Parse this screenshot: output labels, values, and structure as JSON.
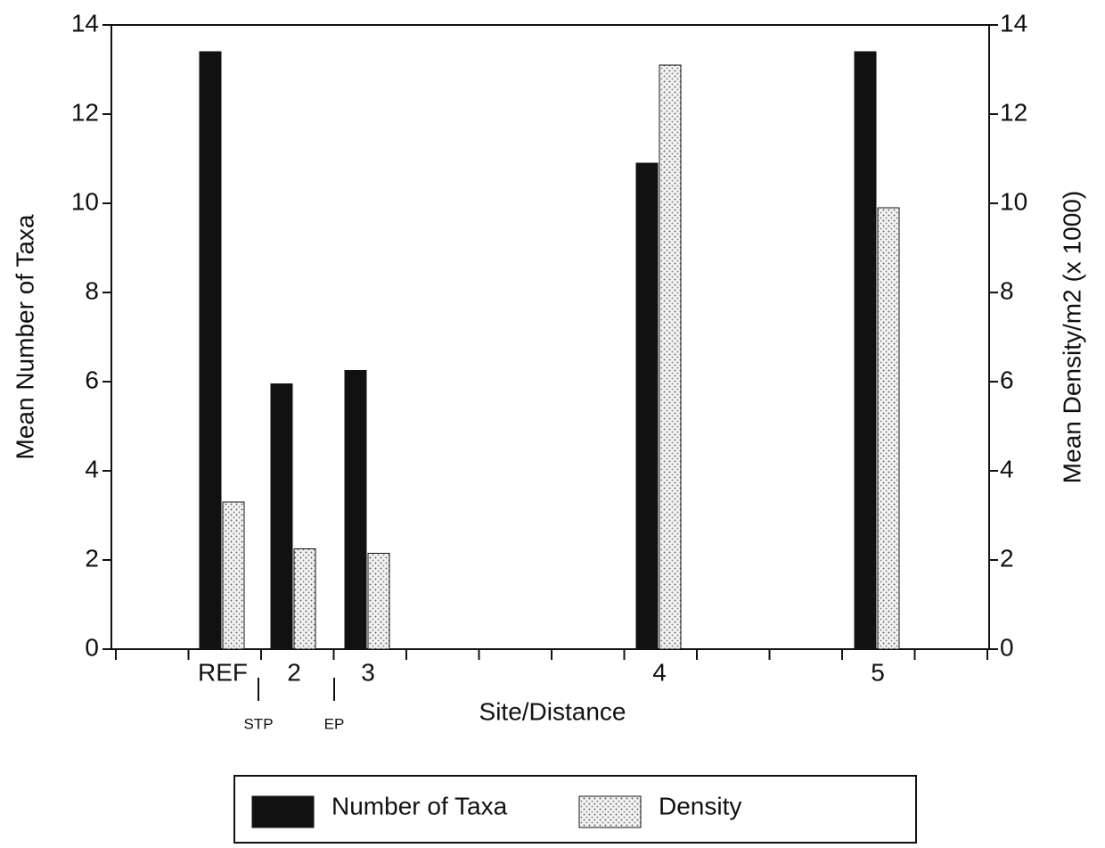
{
  "chart_data": {
    "type": "bar",
    "x_label": "Site/Distance",
    "y_label": "Mean Number of Taxa",
    "y2_label": "Mean Density/m2 (x 1000)",
    "categories": [
      "REF",
      "2",
      "3",
      "4",
      "5"
    ],
    "annotations": [
      "STP",
      "EP"
    ],
    "series": [
      {
        "name": "Number of Taxa",
        "color": "#111111",
        "values": [
          13.4,
          5.95,
          6.25,
          10.9,
          13.4
        ]
      },
      {
        "name": "Density",
        "color": "#d8d8d8",
        "axis": "y2",
        "values": [
          3.3,
          2.25,
          2.15,
          13.1,
          9.9
        ]
      }
    ],
    "ylim": [
      0,
      14
    ],
    "yticks": [
      0,
      2,
      4,
      6,
      8,
      10,
      12,
      14
    ],
    "y2lim": [
      0,
      14
    ],
    "y2ticks": [
      0,
      2,
      4,
      6,
      8,
      10,
      12,
      14
    ],
    "legend": "bottom"
  }
}
